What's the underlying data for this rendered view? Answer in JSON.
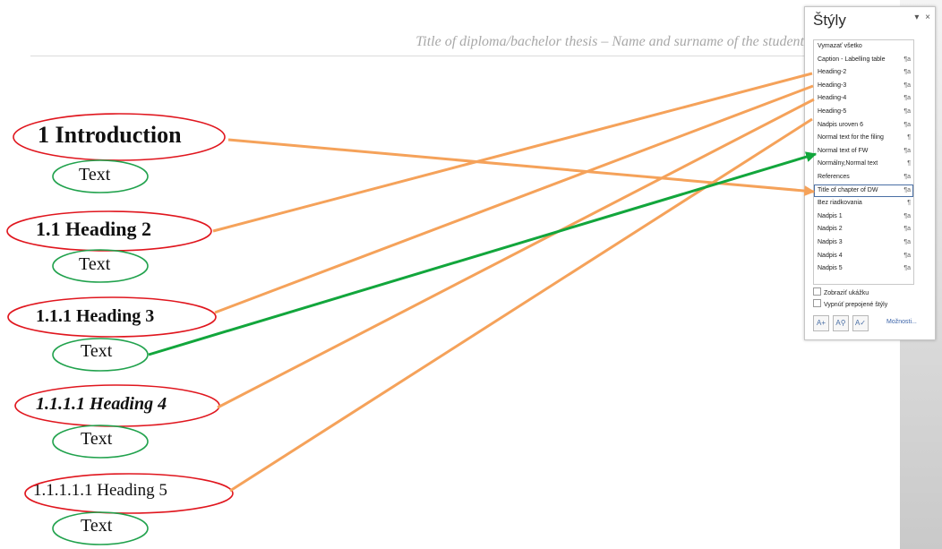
{
  "document": {
    "header": "Title of diploma/bachelor thesis – Name and surname of the student",
    "headings": [
      {
        "level": 1,
        "text": "1    Introduction"
      },
      {
        "level": 2,
        "text": "1.1    Heading 2"
      },
      {
        "level": 3,
        "text": "1.1.1    Heading 3"
      },
      {
        "level": 4,
        "text": "1.1.1.1    Heading 4"
      },
      {
        "level": 5,
        "text": "1.1.1.1.1   Heading 5"
      }
    ],
    "body_text": [
      "Text",
      "Text",
      "Text",
      "Text",
      "Text"
    ]
  },
  "styles_panel": {
    "title": "Štýly",
    "dropdown_glyph": "▾",
    "close_glyph": "×",
    "items": [
      {
        "name": "Vymazať všetko",
        "type": ""
      },
      {
        "name": "Caption - Labelling table",
        "type": "¶a"
      },
      {
        "name": "Heading-2",
        "type": "¶a"
      },
      {
        "name": "Heading-3",
        "type": "¶a"
      },
      {
        "name": "Heading-4",
        "type": "¶a"
      },
      {
        "name": "Heading-5",
        "type": "¶a"
      },
      {
        "name": "Nadpis uroven 6",
        "type": "¶a"
      },
      {
        "name": "Normal text for the filing",
        "type": "¶"
      },
      {
        "name": "Normal text of FW",
        "type": "¶a"
      },
      {
        "name": "Normálny,Normal text",
        "type": "¶"
      },
      {
        "name": "References",
        "type": "¶a"
      },
      {
        "name": "Title of chapter of DW",
        "type": "¶a",
        "selected": true
      },
      {
        "name": "Bez riadkovania",
        "type": "¶"
      },
      {
        "name": "Nadpis 1",
        "type": "¶a"
      },
      {
        "name": "Nadpis 2",
        "type": "¶a"
      },
      {
        "name": "Nadpis 3",
        "type": "¶a"
      },
      {
        "name": "Nadpis 4",
        "type": "¶a"
      },
      {
        "name": "Nadpis 5",
        "type": "¶a"
      }
    ],
    "show_preview_label": "Zobraziť ukážku",
    "disable_linked_label": "Vypnúť prepojené štýly",
    "buttons": {
      "new_style": "A+",
      "style_inspector": "A⚲",
      "manage_styles": "A✓"
    },
    "options_label": "Možnosti..."
  },
  "colors": {
    "heading_ellipse": "#e0161e",
    "text_ellipse": "#21a24d",
    "heading_arrow": "#f5a25a",
    "text_arrow": "#12a63c"
  },
  "connections": [
    {
      "from": "1    Introduction",
      "to": "Title of chapter of DW"
    },
    {
      "from": "1.1    Heading 2",
      "to": "Heading-2"
    },
    {
      "from": "1.1.1    Heading 3",
      "to": "Heading-3"
    },
    {
      "from": "1.1.1.1    Heading 4",
      "to": "Heading-4"
    },
    {
      "from": "1.1.1.1.1   Heading 5",
      "to": "Heading-5"
    },
    {
      "from": "Text",
      "to": "Normal text of FW"
    }
  ]
}
